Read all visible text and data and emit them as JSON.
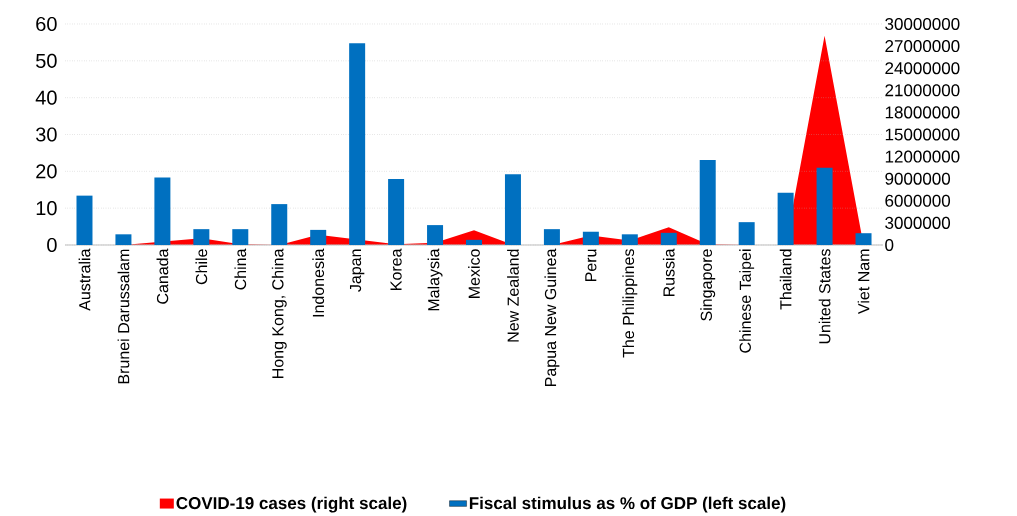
{
  "chart_data": {
    "type": "bar",
    "categories": [
      "Australia",
      "Brunei Darussalam",
      "Canada",
      "Chile",
      "China",
      "Hong Kong, China",
      "Indonesia",
      "Japan",
      "Korea",
      "Malaysia",
      "Mexico",
      "New Zealand",
      "Papua New Guinea",
      "Peru",
      "The Philippines",
      "Russia",
      "Singapore",
      "Chinese Taipei",
      "Thailand",
      "United States",
      "Viet Nam"
    ],
    "series": [
      {
        "name": "COVID-19 cases (right scale)",
        "type": "area",
        "axis": "y2",
        "color": "#ff0000",
        "values": [
          0,
          0,
          null,
          900000,
          100000,
          0,
          1400000,
          null,
          100000,
          300000,
          2000000,
          0,
          0,
          1300000,
          600000,
          2400000,
          100000,
          0,
          0,
          28400000,
          0
        ]
      },
      {
        "name": "Fiscal stimulus as % of GDP (left scale)",
        "color": "#0070c0",
        "values": [
          13.4,
          2.9,
          18.3,
          4.3,
          4.3,
          11.1,
          4.1,
          54.8,
          17.9,
          5.4,
          1.4,
          19.2,
          4.3,
          3.6,
          2.9,
          3.3,
          23.1,
          6.2,
          14.2,
          21.0,
          3.2
        ]
      }
    ],
    "ylim": [
      0,
      60
    ],
    "yticks": [
      0,
      10,
      20,
      30,
      40,
      50,
      60
    ],
    "y2lim": [
      0,
      30000000
    ],
    "y2ticks": [
      0,
      3000000,
      6000000,
      9000000,
      12000000,
      15000000,
      18000000,
      21000000,
      24000000,
      27000000,
      30000000
    ],
    "grid": "y",
    "legend": "bottom"
  }
}
